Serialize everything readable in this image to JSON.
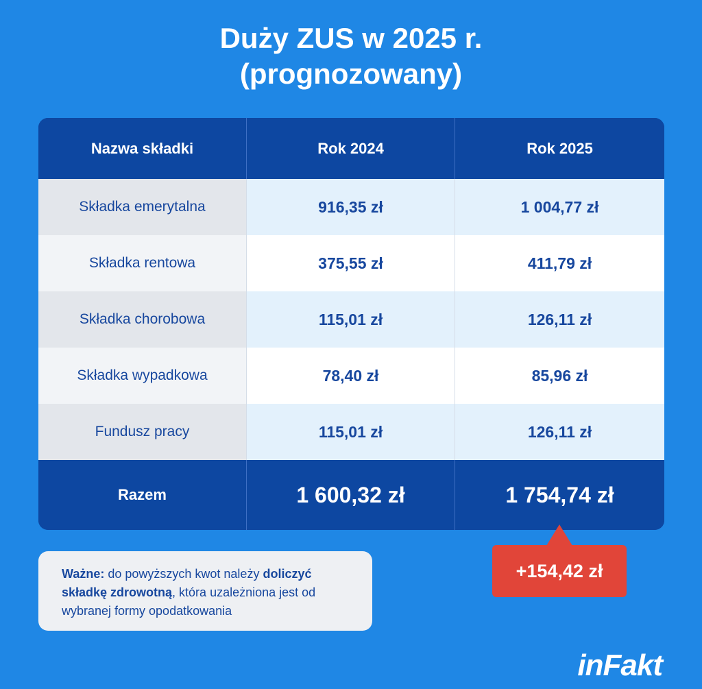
{
  "title": {
    "line1": "Duży ZUS w 2025 r.",
    "line2": "(prognozowany)"
  },
  "table": {
    "headers": [
      "Nazwa składki",
      "Rok 2024",
      "Rok 2025"
    ],
    "rows": [
      [
        "Składka emerytalna",
        "916,35 zł",
        "1 004,77 zł"
      ],
      [
        "Składka rentowa",
        "375,55 zł",
        "411,79 zł"
      ],
      [
        "Składka chorobowa",
        "115,01 zł",
        "126,11 zł"
      ],
      [
        "Składka wypadkowa",
        "78,40 zł",
        "85,96 zł"
      ],
      [
        "Fundusz pracy",
        "115,01 zł",
        "126,11 zł"
      ]
    ],
    "total": [
      "Razem",
      "1 600,32 zł",
      "1 754,74 zł"
    ]
  },
  "badge": {
    "text": "+154,42 zł"
  },
  "note": {
    "label": "Ważne:",
    "text1": " do powyższych kwot należy ",
    "bold": "doliczyć składkę zdrowotną",
    "text2": ", która uzależniona jest od wybranej formy opodatkowania"
  },
  "logo": {
    "text": "inFakt"
  },
  "colors": {
    "background": "#1f87e5",
    "header": "#0d47a1",
    "accent_red": "#e14539",
    "text_blue": "#17479e"
  }
}
